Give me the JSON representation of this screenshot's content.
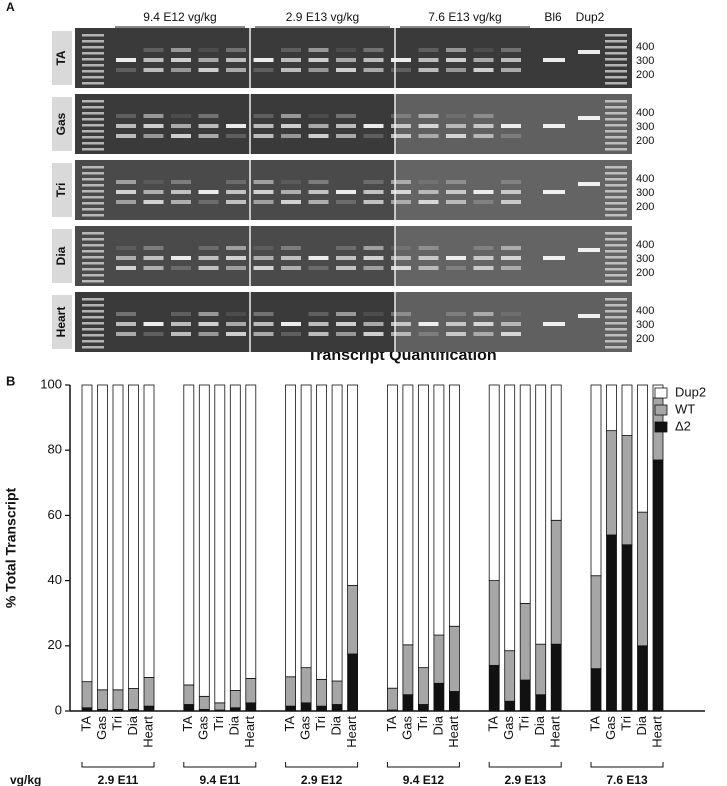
{
  "panel_a": {
    "panel_label": "A",
    "dose_labels": [
      "9.4 E12 vg/kg",
      "2.9 E13 vg/kg",
      "7.6 E13 vg/kg"
    ],
    "control_labels": [
      "Bl6",
      "Dup2"
    ],
    "rows": [
      "TA",
      "Gas",
      "Tri",
      "Dia",
      "Heart"
    ],
    "ladder_labels": [
      400,
      300,
      200
    ]
  },
  "chart_data": {
    "type": "bar",
    "stacked": true,
    "panel_label": "B",
    "title": "Transcript Quantification",
    "y_label": "% Total Transcript",
    "group_axis_label": "vg/kg",
    "groups": [
      "2.9 E11",
      "9.4 E11",
      "2.9 E12",
      "9.4 E12",
      "2.9 E13",
      "7.6 E13"
    ],
    "categories": [
      "TA",
      "Gas",
      "Tri",
      "Dia",
      "Heart",
      "TA",
      "Gas",
      "Tri",
      "Dia",
      "Heart",
      "TA",
      "Gas",
      "Tri",
      "Dia",
      "Heart",
      "TA",
      "Gas",
      "Tri",
      "Dia",
      "Heart",
      "TA",
      "Gas",
      "Tri",
      "Dia",
      "Heart",
      "TA",
      "Gas",
      "Tri",
      "Dia",
      "Heart"
    ],
    "ylim": [
      0,
      100
    ],
    "yticks": [
      0,
      20,
      40,
      60,
      80,
      100
    ],
    "legend": "upper right",
    "series": [
      {
        "name": "Δ2",
        "color": "#111111",
        "values": [
          1,
          0.5,
          0.5,
          0.5,
          1.5,
          2,
          0.5,
          0.3,
          1,
          2.5,
          1.5,
          2.5,
          1.5,
          2,
          17.5,
          0.3,
          5,
          2,
          8.5,
          6,
          14,
          3,
          9.5,
          5,
          20.5,
          13,
          54,
          51,
          20,
          77
        ]
      },
      {
        "name": "WT",
        "color": "#a6a6a6",
        "values": [
          8,
          6,
          6,
          6.4,
          8.8,
          6,
          4,
          2.2,
          5.3,
          7.5,
          9,
          10.8,
          8.2,
          7.2,
          21,
          6.7,
          15.3,
          11.3,
          14.8,
          20,
          26,
          15.5,
          23.5,
          15.5,
          38,
          28.5,
          32,
          33.5,
          41,
          19
        ]
      },
      {
        "name": "Dup2",
        "color": "#ffffff",
        "values": [
          91,
          93.5,
          93.5,
          93.1,
          89.7,
          92,
          95.5,
          97.5,
          93.7,
          90,
          89.5,
          86.7,
          90.3,
          90.8,
          61.5,
          93,
          79.7,
          86.7,
          76.7,
          74,
          60,
          81.5,
          67,
          79.5,
          41.5,
          58.5,
          14,
          15.5,
          39,
          4
        ]
      }
    ]
  }
}
